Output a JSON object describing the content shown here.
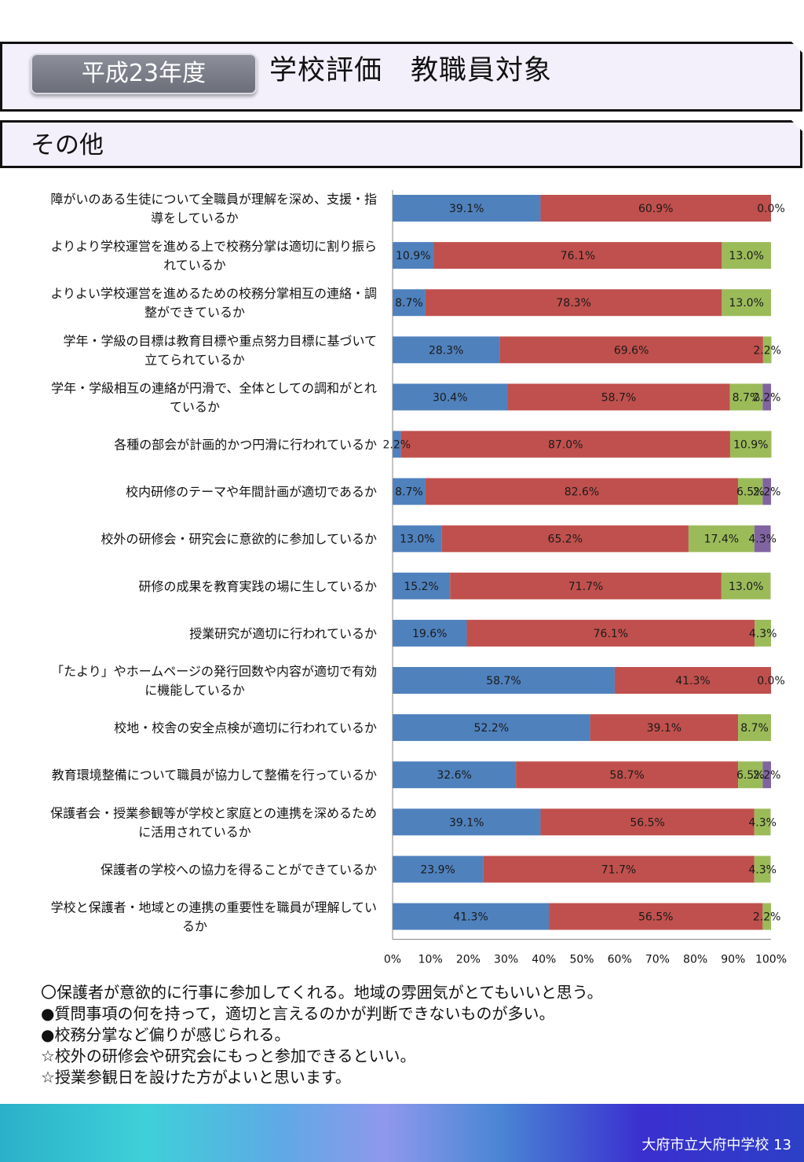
{
  "header": {
    "year_badge": "平成23年度",
    "title": "学校評価　教職員対象"
  },
  "section": {
    "title": "その他"
  },
  "chart_data": {
    "type": "bar",
    "orientation": "horizontal",
    "stacked": true,
    "categories": [
      "障がいのある生徒について全職員が理解を深め、支援・指導をしているか",
      "よりより学校運営を進める上で校務分掌は適切に割り振られているか",
      "よりよい学校運営を進めるための校務分掌相互の連絡・調整ができているか",
      "学年・学級の目標は教育目標や重点努力目標に基づいて立てられているか",
      "学年・学級相互の連絡が円滑で、全体としての調和がとれているか",
      "各種の部会が計画的かつ円滑に行われているか",
      "校内研修のテーマや年間計画が適切であるか",
      "校外の研修会・研究会に意欲的に参加しているか",
      "研修の成果を教育実践の場に生しているか",
      "授業研究が適切に行われているか",
      "「たより」やホームページの発行回数や内容が適切で有効に機能しているか",
      "校地・校舎の安全点検が適切に行われているか",
      "教育環境整備について職員が協力して整備を行っているか",
      "保護者会・授業参観等が学校と家庭との連携を深めるために活用されているか",
      "保護者の学校への協力を得ることができているか",
      "学校と保護者・地域との連携の重要性を職員が理解しているか"
    ],
    "label_lines": [
      [
        "障がいのある生徒について全職員が理解を深め、支援・指",
        "導をしているか"
      ],
      [
        "よりより学校運営を進める上で校務分掌は適切に割り振ら",
        "れているか"
      ],
      [
        "よりよい学校運営を進めるための校務分掌相互の連絡・調",
        "整ができているか"
      ],
      [
        "学年・学級の目標は教育目標や重点努力目標に基づいて",
        "立てられているか"
      ],
      [
        "学年・学級相互の連絡が円滑で、全体としての調和がとれ",
        "ているか"
      ],
      [
        "各種の部会が計画的かつ円滑に行われているか"
      ],
      [
        "校内研修のテーマや年間計画が適切であるか"
      ],
      [
        "校外の研修会・研究会に意欲的に参加しているか"
      ],
      [
        "研修の成果を教育実践の場に生しているか"
      ],
      [
        "授業研究が適切に行われているか"
      ],
      [
        "「たより」やホームページの発行回数や内容が適切で有効",
        "に機能しているか"
      ],
      [
        "校地・校舎の安全点検が適切に行われているか"
      ],
      [
        "教育環境整備について職員が協力して整備を行っているか"
      ],
      [
        "保護者会・授業参観等が学校と家庭との連携を深めるため",
        "に活用されているか"
      ],
      [
        "保護者の学校への協力を得ることができているか"
      ],
      [
        "学校と保護者・地域との連携の重要性を職員が理解してい",
        "るか"
      ]
    ],
    "series": [
      {
        "color": "#4f81bd",
        "values": [
          39.1,
          10.9,
          8.7,
          28.3,
          30.4,
          2.2,
          8.7,
          13.0,
          15.2,
          19.6,
          58.7,
          52.2,
          32.6,
          39.1,
          23.9,
          41.3
        ]
      },
      {
        "color": "#c0504d",
        "values": [
          60.9,
          76.1,
          78.3,
          69.6,
          58.7,
          87.0,
          82.6,
          65.2,
          71.7,
          76.1,
          41.3,
          39.1,
          58.7,
          56.5,
          71.7,
          56.5
        ]
      },
      {
        "color": "#9bbb59",
        "values": [
          0.0,
          13.0,
          13.0,
          2.2,
          8.7,
          10.9,
          6.5,
          17.4,
          13.0,
          4.3,
          0.0,
          8.7,
          6.5,
          4.3,
          4.3,
          2.2
        ]
      },
      {
        "color": "#8064a2",
        "values": [
          0.0,
          0.0,
          0.0,
          0.0,
          2.2,
          0.0,
          2.2,
          4.3,
          0.0,
          0.0,
          0.0,
          0.0,
          2.2,
          0.0,
          0.0,
          0.0
        ]
      }
    ],
    "xlim": [
      0,
      100
    ],
    "x_ticks": [
      "0%",
      "10%",
      "20%",
      "30%",
      "40%",
      "50%",
      "60%",
      "70%",
      "80%",
      "90%",
      "100%"
    ],
    "value_format": "one decimal with %",
    "grid": false,
    "legend": "none"
  },
  "comments": [
    "〇保護者が意欲的に行事に参加してくれる。地域の雰囲気がとてもいいと思う。",
    "●質問事項の何を持って，適切と言えるのかが判断できないものが多い。",
    "●校務分掌など偏りが感じられる。",
    "☆校外の研修会や研究会にもっと参加できるといい。",
    "☆授業参観日を設けた方がよいと思います。"
  ],
  "footer": {
    "text": "大府市立大府中学校 13"
  }
}
